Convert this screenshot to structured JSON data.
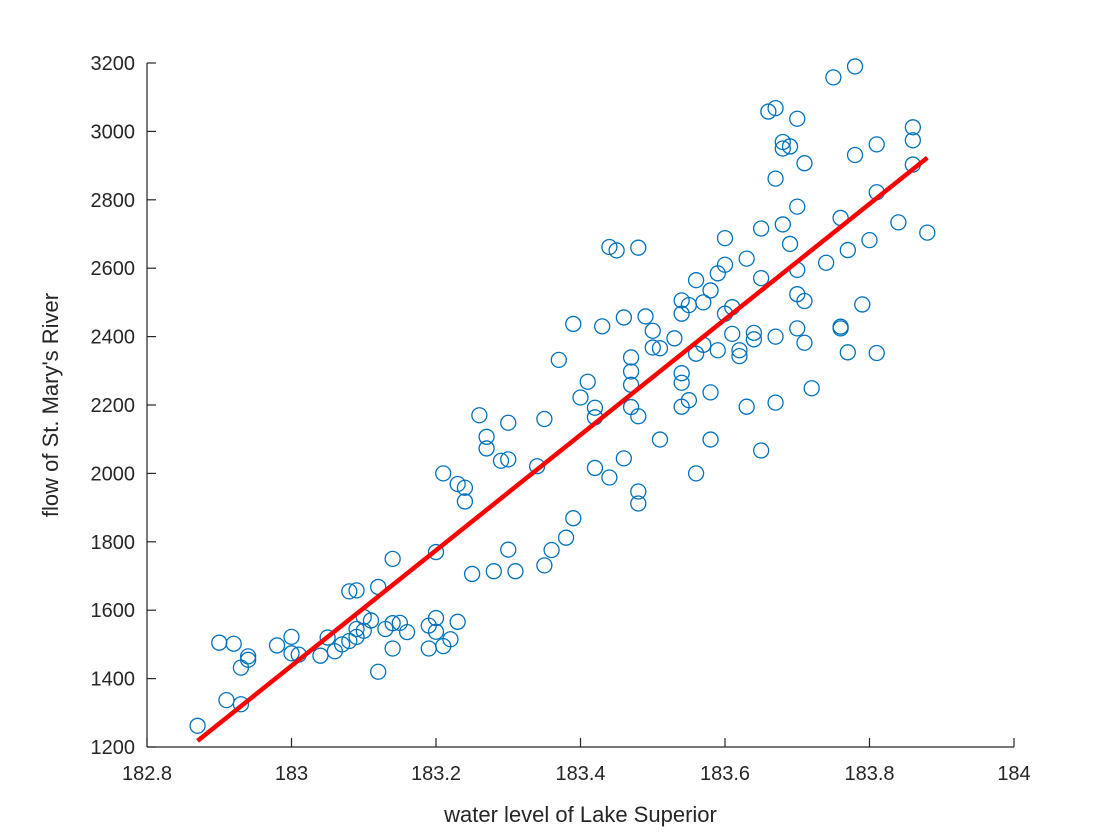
{
  "chart_data": {
    "type": "scatter",
    "title": "",
    "xlabel": "water level of Lake Superior",
    "ylabel": "flow of St. Mary's River",
    "xlim": [
      182.8,
      184
    ],
    "ylim": [
      1200,
      3200
    ],
    "xticks": [
      182.8,
      183,
      183.2,
      183.4,
      183.6,
      183.8,
      184
    ],
    "xtick_labels": [
      "182.8",
      "183",
      "183.2",
      "183.4",
      "183.6",
      "183.8",
      "184"
    ],
    "yticks": [
      1200,
      1400,
      1600,
      1800,
      2000,
      2200,
      2400,
      2600,
      2800,
      3000,
      3200
    ],
    "ytick_labels": [
      "1200",
      "1400",
      "1600",
      "1800",
      "2000",
      "2200",
      "2400",
      "2600",
      "2800",
      "3000",
      "3200"
    ],
    "grid": false,
    "legend": "none",
    "colors": {
      "points": "#0072BD",
      "fit": "#FF0000",
      "axis": "#262626"
    },
    "series": [
      {
        "kind": "scatter",
        "marker": "circle",
        "points": [
          [
            182.87,
            1262
          ],
          [
            182.91,
            1337
          ],
          [
            182.9,
            1505
          ],
          [
            182.92,
            1502
          ],
          [
            182.93,
            1432
          ],
          [
            182.93,
            1325
          ],
          [
            182.94,
            1465
          ],
          [
            182.94,
            1455
          ],
          [
            182.98,
            1497
          ],
          [
            183.0,
            1522
          ],
          [
            183.0,
            1474
          ],
          [
            183.01,
            1470
          ],
          [
            183.04,
            1467
          ],
          [
            183.05,
            1520
          ],
          [
            183.06,
            1480
          ],
          [
            183.07,
            1500
          ],
          [
            183.08,
            1655
          ],
          [
            183.08,
            1510
          ],
          [
            183.09,
            1658
          ],
          [
            183.09,
            1522
          ],
          [
            183.09,
            1545
          ],
          [
            183.1,
            1540
          ],
          [
            183.1,
            1580
          ],
          [
            183.11,
            1570
          ],
          [
            183.12,
            1420
          ],
          [
            183.12,
            1668
          ],
          [
            183.13,
            1545
          ],
          [
            183.14,
            1750
          ],
          [
            183.14,
            1488
          ],
          [
            183.14,
            1562
          ],
          [
            183.15,
            1563
          ],
          [
            183.16,
            1536
          ],
          [
            183.19,
            1555
          ],
          [
            183.19,
            1488
          ],
          [
            183.2,
            1577
          ],
          [
            183.2,
            1537
          ],
          [
            183.2,
            1770
          ],
          [
            183.21,
            2000
          ],
          [
            183.21,
            1495
          ],
          [
            183.22,
            1515
          ],
          [
            183.23,
            1566
          ],
          [
            183.23,
            1969
          ],
          [
            183.24,
            1958
          ],
          [
            183.24,
            1918
          ],
          [
            183.25,
            1706
          ],
          [
            183.26,
            2170
          ],
          [
            183.27,
            2107
          ],
          [
            183.27,
            2073
          ],
          [
            183.28,
            1714
          ],
          [
            183.29,
            2037
          ],
          [
            183.3,
            2041
          ],
          [
            183.3,
            2148
          ],
          [
            183.3,
            1777
          ],
          [
            183.31,
            1714
          ],
          [
            183.34,
            2021
          ],
          [
            183.35,
            2159
          ],
          [
            183.35,
            1731
          ],
          [
            183.36,
            1776
          ],
          [
            183.37,
            2332
          ],
          [
            183.38,
            1812
          ],
          [
            183.39,
            1869
          ],
          [
            183.39,
            2437
          ],
          [
            183.4,
            2222
          ],
          [
            183.41,
            2268
          ],
          [
            183.42,
            2192
          ],
          [
            183.42,
            2016
          ],
          [
            183.42,
            2164
          ],
          [
            183.43,
            2430
          ],
          [
            183.44,
            1988
          ],
          [
            183.44,
            2662
          ],
          [
            183.45,
            2652
          ],
          [
            183.46,
            2044
          ],
          [
            183.46,
            2456
          ],
          [
            183.47,
            2339
          ],
          [
            183.47,
            2298
          ],
          [
            183.47,
            2259
          ],
          [
            183.47,
            2194
          ],
          [
            183.48,
            2167
          ],
          [
            183.48,
            2660
          ],
          [
            183.48,
            1947
          ],
          [
            183.48,
            1912
          ],
          [
            183.49,
            2459
          ],
          [
            183.5,
            2417
          ],
          [
            183.5,
            2368
          ],
          [
            183.51,
            2366
          ],
          [
            183.51,
            2099
          ],
          [
            183.53,
            2395
          ],
          [
            183.54,
            2506
          ],
          [
            183.54,
            2467
          ],
          [
            183.54,
            2293
          ],
          [
            183.54,
            2265
          ],
          [
            183.54,
            2195
          ],
          [
            183.55,
            2492
          ],
          [
            183.55,
            2214
          ],
          [
            183.56,
            2565
          ],
          [
            183.56,
            2350
          ],
          [
            183.56,
            2000
          ],
          [
            183.57,
            2500
          ],
          [
            183.57,
            2376
          ],
          [
            183.58,
            2535
          ],
          [
            183.58,
            2237
          ],
          [
            183.58,
            2099
          ],
          [
            183.59,
            2585
          ],
          [
            183.59,
            2360
          ],
          [
            183.6,
            2688
          ],
          [
            183.6,
            2610
          ],
          [
            183.6,
            2467
          ],
          [
            183.61,
            2486
          ],
          [
            183.61,
            2408
          ],
          [
            183.62,
            2343
          ],
          [
            183.62,
            2360
          ],
          [
            183.63,
            2628
          ],
          [
            183.63,
            2195
          ],
          [
            183.64,
            2411
          ],
          [
            183.64,
            2392
          ],
          [
            183.65,
            2716
          ],
          [
            183.65,
            2571
          ],
          [
            183.65,
            2067
          ],
          [
            183.66,
            3058
          ],
          [
            183.67,
            3068
          ],
          [
            183.67,
            2862
          ],
          [
            183.67,
            2400
          ],
          [
            183.67,
            2207
          ],
          [
            183.68,
            2969
          ],
          [
            183.68,
            2950
          ],
          [
            183.68,
            2728
          ],
          [
            183.69,
            2956
          ],
          [
            183.69,
            2671
          ],
          [
            183.7,
            3037
          ],
          [
            183.7,
            2780
          ],
          [
            183.7,
            2595
          ],
          [
            183.7,
            2524
          ],
          [
            183.7,
            2424
          ],
          [
            183.71,
            2907
          ],
          [
            183.71,
            2504
          ],
          [
            183.71,
            2382
          ],
          [
            183.72,
            2249
          ],
          [
            183.74,
            2616
          ],
          [
            183.75,
            3158
          ],
          [
            183.76,
            2747
          ],
          [
            183.76,
            2429
          ],
          [
            183.76,
            2424
          ],
          [
            183.77,
            2653
          ],
          [
            183.77,
            2354
          ],
          [
            183.78,
            3190
          ],
          [
            183.78,
            2931
          ],
          [
            183.79,
            2494
          ],
          [
            183.8,
            2682
          ],
          [
            183.81,
            2962
          ],
          [
            183.81,
            2822
          ],
          [
            183.81,
            2352
          ],
          [
            183.84,
            2734
          ],
          [
            183.86,
            3012
          ],
          [
            183.86,
            2974
          ],
          [
            183.86,
            2903
          ],
          [
            183.88,
            2704
          ]
        ]
      },
      {
        "kind": "line",
        "points": [
          [
            182.87,
            1218
          ],
          [
            183.88,
            2923
          ]
        ]
      }
    ]
  }
}
